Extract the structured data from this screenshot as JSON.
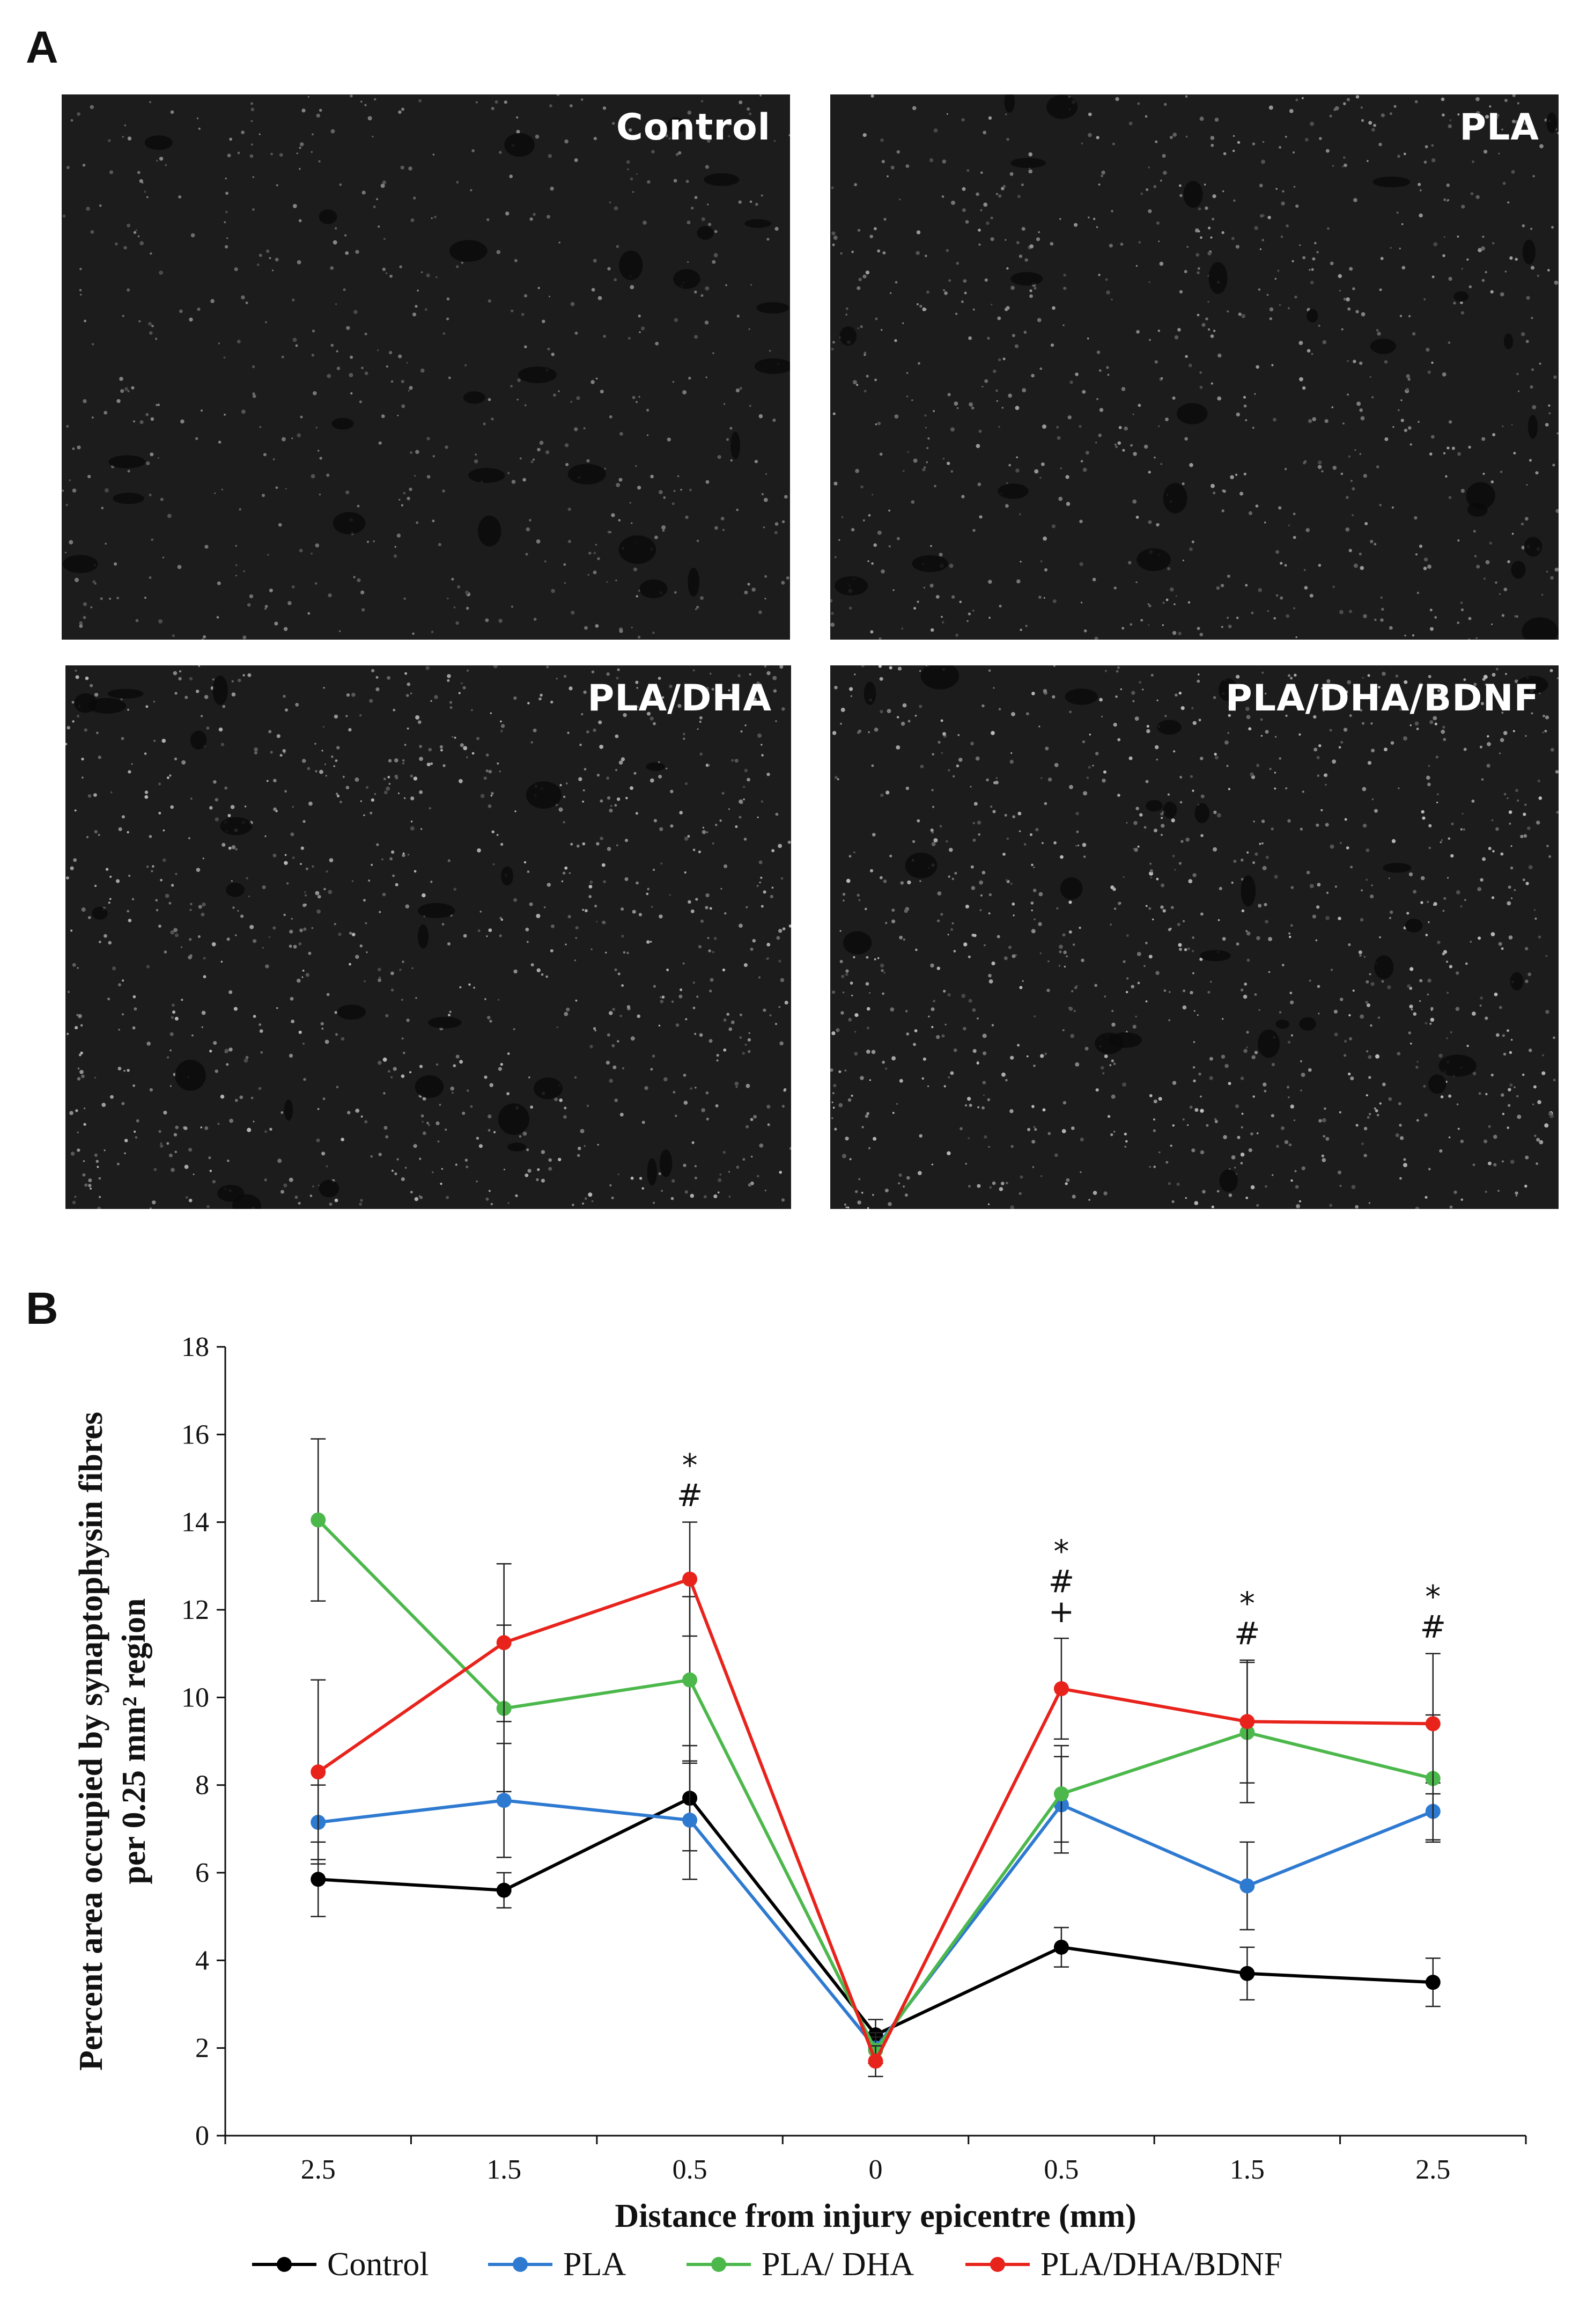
{
  "panel_a": {
    "letter": "A",
    "images": [
      {
        "label": "Control",
        "brightness": 0.55
      },
      {
        "label": "PLA",
        "brightness": 0.75
      },
      {
        "label": "PLA/DHA",
        "brightness": 0.95
      },
      {
        "label": "PLA/DHA/BDNF",
        "brightness": 1.0
      }
    ]
  },
  "panel_b": {
    "letter": "B"
  },
  "chart_data": {
    "type": "line",
    "categories": [
      "2.5",
      "1.5",
      "0.5",
      "0",
      "0.5",
      "1.5",
      "2.5"
    ],
    "xlabel": "Distance from injury epicentre (mm)",
    "ylabel_line1": "Percent area occupied by synaptophysin fibres",
    "ylabel_line2": "per 0.25 mm² region",
    "ylim": [
      0,
      18
    ],
    "yticks": [
      "0",
      "2",
      "4",
      "6",
      "8",
      "10",
      "12",
      "14",
      "16",
      "18"
    ],
    "grid": false,
    "legend_position": "bottom",
    "series": [
      {
        "name": "Control",
        "color": "#000000",
        "values": [
          5.85,
          5.6,
          7.7,
          2.3,
          4.3,
          3.7,
          3.5
        ],
        "errors": [
          0.85,
          0.4,
          1.2,
          0.35,
          0.45,
          0.6,
          0.55
        ]
      },
      {
        "name": "PLA",
        "color": "#2e7ad1",
        "values": [
          7.15,
          7.65,
          7.2,
          2.0,
          7.55,
          5.7,
          7.4
        ],
        "errors": [
          0.85,
          1.3,
          1.35,
          0.35,
          1.1,
          1.0,
          0.65
        ]
      },
      {
        "name": "PLA/ DHA",
        "color": "#4cb84c",
        "values": [
          14.05,
          9.75,
          10.4,
          1.95,
          7.8,
          9.2,
          8.15
        ],
        "errors": [
          1.85,
          1.9,
          1.9,
          0.3,
          1.1,
          1.6,
          1.45
        ]
      },
      {
        "name": "PLA/DHA/BDNF",
        "color": "#e8231c",
        "values": [
          8.3,
          11.25,
          12.7,
          1.7,
          10.2,
          9.45,
          9.4
        ],
        "errors": [
          2.1,
          1.8,
          1.3,
          0.35,
          1.15,
          1.4,
          1.6
        ]
      }
    ],
    "annotations": [
      {
        "index": 2,
        "symbols": [
          "*",
          "#"
        ]
      },
      {
        "index": 4,
        "symbols": [
          "*",
          "#",
          "+"
        ]
      },
      {
        "index": 5,
        "symbols": [
          "*",
          "#"
        ]
      },
      {
        "index": 6,
        "symbols": [
          "*",
          "#"
        ]
      }
    ]
  }
}
